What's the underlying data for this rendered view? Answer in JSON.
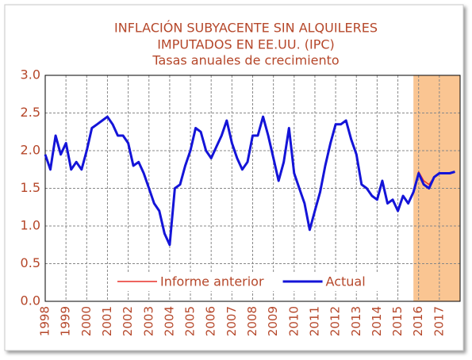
{
  "chart_data": {
    "type": "line",
    "title_lines": [
      "INFLACIÓN SUBYACENTE SIN ALQUILERES",
      "IMPUTADOS EN EE.UU. (IPC)"
    ],
    "subtitle": "Tasas anuales de crecimiento",
    "x": [
      1998,
      1998.25,
      1998.5,
      1998.75,
      1999,
      1999.25,
      1999.5,
      1999.75,
      2000,
      2000.25,
      2000.5,
      2000.75,
      2001,
      2001.25,
      2001.5,
      2001.75,
      2002,
      2002.25,
      2002.5,
      2002.75,
      2003,
      2003.25,
      2003.5,
      2003.75,
      2004,
      2004.25,
      2004.5,
      2004.75,
      2005,
      2005.25,
      2005.5,
      2005.75,
      2006,
      2006.25,
      2006.5,
      2006.75,
      2007,
      2007.25,
      2007.5,
      2007.75,
      2008,
      2008.25,
      2008.5,
      2008.75,
      2009,
      2009.25,
      2009.5,
      2009.75,
      2010,
      2010.25,
      2010.5,
      2010.75,
      2011,
      2011.25,
      2011.5,
      2011.75,
      2012,
      2012.25,
      2012.5,
      2012.75,
      2013,
      2013.25,
      2013.5,
      2013.75,
      2014,
      2014.25,
      2014.5,
      2014.75,
      2015,
      2015.25,
      2015.5,
      2015.75,
      2016,
      2016.25,
      2016.5,
      2016.75,
      2017,
      2017.25,
      2017.5,
      2017.75
    ],
    "series": [
      {
        "name": "Informe anterior",
        "color": "#e8302a",
        "width": 1.5,
        "values": [
          null,
          null,
          null,
          null,
          null,
          null,
          null,
          null,
          null,
          null,
          null,
          null,
          null,
          null,
          null,
          null,
          null,
          null,
          null,
          null,
          null,
          null,
          null,
          null,
          null,
          null,
          null,
          null,
          null,
          null,
          null,
          null,
          null,
          null,
          null,
          null,
          null,
          null,
          null,
          null,
          null,
          null,
          null,
          null,
          null,
          null,
          null,
          null,
          null,
          null,
          null,
          null,
          null,
          null,
          null,
          null,
          null,
          null,
          null,
          null,
          null,
          null,
          null,
          null,
          null,
          null,
          null,
          null,
          null,
          null,
          1.3,
          1.45,
          1.72,
          1.6,
          1.55,
          1.65,
          1.7,
          1.7,
          1.7,
          1.72
        ]
      },
      {
        "name": "Actual",
        "color": "#1414d8",
        "width": 3,
        "values": [
          1.95,
          1.75,
          2.2,
          1.95,
          2.1,
          1.75,
          1.85,
          1.75,
          2.0,
          2.3,
          2.35,
          2.4,
          2.45,
          2.35,
          2.2,
          2.2,
          2.1,
          1.8,
          1.85,
          1.7,
          1.5,
          1.3,
          1.2,
          0.9,
          0.75,
          1.5,
          1.55,
          1.8,
          2.0,
          2.3,
          2.25,
          2.0,
          1.9,
          2.05,
          2.2,
          2.4,
          2.1,
          1.9,
          1.75,
          1.85,
          2.2,
          2.2,
          2.45,
          2.2,
          1.9,
          1.6,
          1.85,
          2.3,
          1.7,
          1.5,
          1.3,
          0.95,
          1.2,
          1.45,
          1.8,
          2.1,
          2.35,
          2.35,
          2.4,
          2.15,
          1.95,
          1.55,
          1.5,
          1.4,
          1.35,
          1.6,
          1.3,
          1.35,
          1.2,
          1.4,
          1.3,
          1.45,
          1.7,
          1.55,
          1.5,
          1.65,
          1.7,
          1.7,
          1.7,
          1.72
        ]
      }
    ],
    "xlim": [
      1998,
      2018
    ],
    "xticks": [
      1998,
      1999,
      2000,
      2001,
      2002,
      2003,
      2004,
      2005,
      2006,
      2007,
      2008,
      2009,
      2010,
      2011,
      2012,
      2013,
      2014,
      2015,
      2016,
      2017
    ],
    "ylim": [
      0,
      3
    ],
    "yticks": [
      {
        "value": 0,
        "label": "0.0"
      },
      0.5,
      {
        "value": 1,
        "label": "1.0"
      },
      1.5,
      {
        "value": 2,
        "label": "2.0"
      },
      2.5,
      {
        "value": 3,
        "label": "3.0"
      }
    ],
    "grid": true,
    "shaded_region": {
      "from": 2015.75,
      "to": 2018,
      "color": "#fac592"
    },
    "legend": "bottom"
  }
}
